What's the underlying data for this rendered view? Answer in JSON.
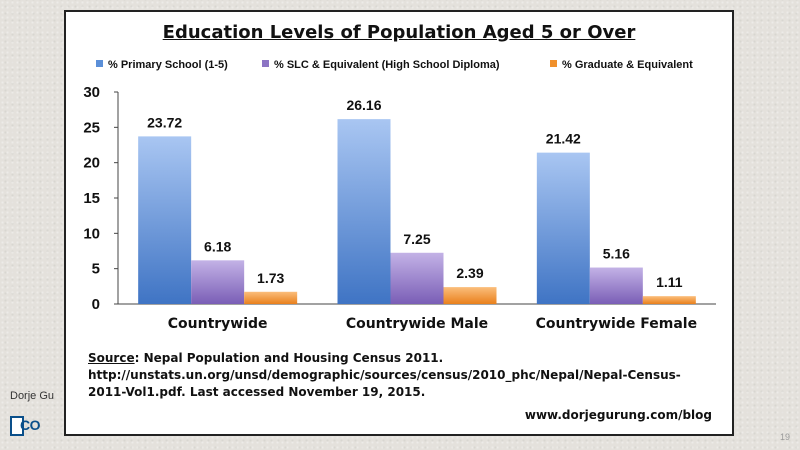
{
  "slide": {
    "author": "Dorje Gu",
    "logo_text": "CO",
    "page_number": "19"
  },
  "chart_data": {
    "type": "bar",
    "title": "Education Levels of Population Aged 5 or Over",
    "categories": [
      "Countrywide",
      "Countrywide Male",
      "Countrywide Female"
    ],
    "series": [
      {
        "name": "% Primary School (1-5)",
        "values": [
          23.72,
          26.16,
          21.42
        ],
        "color": "#5b8fd8",
        "label_text": [
          "23.72",
          "26.16",
          "21.42"
        ]
      },
      {
        "name": "% SLC & Equivalent (High School Diploma)",
        "values": [
          6.18,
          7.25,
          5.16
        ],
        "color": "#8c74c4",
        "label_text": [
          "6.18",
          "7.25",
          "5.16"
        ]
      },
      {
        "name": "% Graduate & Equivalent",
        "values": [
          1.73,
          2.39,
          1.11
        ],
        "color": "#f0902c",
        "label_text": [
          "1.73",
          "2.39",
          "1.11"
        ]
      }
    ],
    "y_ticks": [
      "0",
      "5",
      "10",
      "15",
      "20",
      "25",
      "30"
    ],
    "ylim": [
      0,
      30
    ],
    "grid": false,
    "legend_position": "top"
  },
  "source": {
    "label": "Source",
    "text": ": Nepal Population and Housing Census 2011. http://unstats.un.org/unsd/demographic/sources/census/2010_phc/Nepal/Nepal-Census-2011-Vol1.pdf. Last accessed November 19, 2015."
  },
  "website": "www.dorjegurung.com/blog"
}
